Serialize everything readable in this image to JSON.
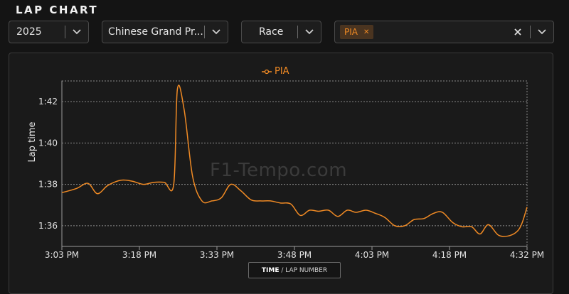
{
  "header": {
    "title": "LAP CHART"
  },
  "filters": {
    "year": "2025",
    "event": "Chinese Grand Pr...",
    "session": "Race",
    "drivers": [
      "PIA"
    ]
  },
  "colors": {
    "accent": "#f08a24",
    "background": "#141414",
    "panel": "#1a1a1a"
  },
  "icons": {
    "dropdown": "chevron-down-icon",
    "remove": "close-icon",
    "clear": "close-icon"
  },
  "watermark": "F1-Tempo.com",
  "axis_toggle": {
    "active": "TIME",
    "rest": " / LAP NUMBER"
  },
  "chart_data": {
    "type": "line",
    "title": "",
    "xlabel": "",
    "ylabel": "Lap time",
    "legend": "top-center",
    "grid": true,
    "x_ticks": [
      "3:03 PM",
      "3:18 PM",
      "3:33 PM",
      "3:48 PM",
      "4:03 PM",
      "4:18 PM",
      "4:32 PM"
    ],
    "x_range_minutes": [
      0,
      89
    ],
    "y_ticks": [
      "1:36",
      "1:38",
      "1:40",
      "1:42"
    ],
    "y_tick_seconds": [
      96,
      98,
      100,
      102
    ],
    "y_range_seconds": [
      95,
      103
    ],
    "series": [
      {
        "name": "PIA",
        "color": "#f08a24",
        "points": [
          [
            0.0,
            97.6
          ],
          [
            2.8,
            97.8
          ],
          [
            5.0,
            98.05
          ],
          [
            6.8,
            97.55
          ],
          [
            8.8,
            97.95
          ],
          [
            11.3,
            98.2
          ],
          [
            13.5,
            98.15
          ],
          [
            15.6,
            98.0
          ],
          [
            17.6,
            98.1
          ],
          [
            19.6,
            98.1
          ],
          [
            21.4,
            98.0
          ],
          [
            22.1,
            102.6
          ],
          [
            23.4,
            101.6
          ],
          [
            25.0,
            98.4
          ],
          [
            26.8,
            97.2
          ],
          [
            28.7,
            97.2
          ],
          [
            30.5,
            97.35
          ],
          [
            32.3,
            98.0
          ],
          [
            34.2,
            97.7
          ],
          [
            36.2,
            97.25
          ],
          [
            38.0,
            97.2
          ],
          [
            39.9,
            97.2
          ],
          [
            41.8,
            97.1
          ],
          [
            43.8,
            97.05
          ],
          [
            45.6,
            96.5
          ],
          [
            47.4,
            96.75
          ],
          [
            49.1,
            96.7
          ],
          [
            51.0,
            96.75
          ],
          [
            52.8,
            96.45
          ],
          [
            54.6,
            96.75
          ],
          [
            56.3,
            96.65
          ],
          [
            58.2,
            96.75
          ],
          [
            60.0,
            96.6
          ],
          [
            61.8,
            96.4
          ],
          [
            63.7,
            96.0
          ],
          [
            65.6,
            96.0
          ],
          [
            67.4,
            96.3
          ],
          [
            69.3,
            96.35
          ],
          [
            71.1,
            96.6
          ],
          [
            72.8,
            96.65
          ],
          [
            74.8,
            96.15
          ],
          [
            76.6,
            95.95
          ],
          [
            78.4,
            95.95
          ],
          [
            80.0,
            95.6
          ],
          [
            81.6,
            96.05
          ],
          [
            83.5,
            95.55
          ],
          [
            85.3,
            95.5
          ],
          [
            87.0,
            95.7
          ],
          [
            88.0,
            96.1
          ],
          [
            89.0,
            96.9
          ]
        ]
      }
    ]
  }
}
